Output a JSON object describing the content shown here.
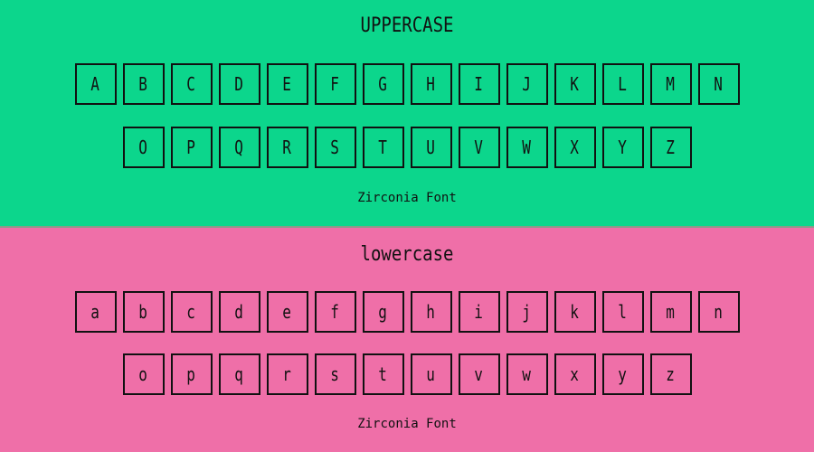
{
  "colors": {
    "uppercase_bg": "#0cd68c",
    "lowercase_bg": "#ef6fa8",
    "ink": "#111111"
  },
  "uppercase": {
    "title": "UPPERCASE",
    "row1": [
      "A",
      "B",
      "C",
      "D",
      "E",
      "F",
      "G",
      "H",
      "I",
      "J",
      "K",
      "L",
      "M",
      "N"
    ],
    "row2": [
      "O",
      "P",
      "Q",
      "R",
      "S",
      "T",
      "U",
      "V",
      "W",
      "X",
      "Y",
      "Z"
    ],
    "footer": "Zirconia Font"
  },
  "lowercase": {
    "title": "lowercase",
    "row1": [
      "a",
      "b",
      "c",
      "d",
      "e",
      "f",
      "g",
      "h",
      "i",
      "j",
      "k",
      "l",
      "m",
      "n"
    ],
    "row2": [
      "o",
      "p",
      "q",
      "r",
      "s",
      "t",
      "u",
      "v",
      "w",
      "x",
      "y",
      "z"
    ],
    "footer": "Zirconia Font"
  }
}
